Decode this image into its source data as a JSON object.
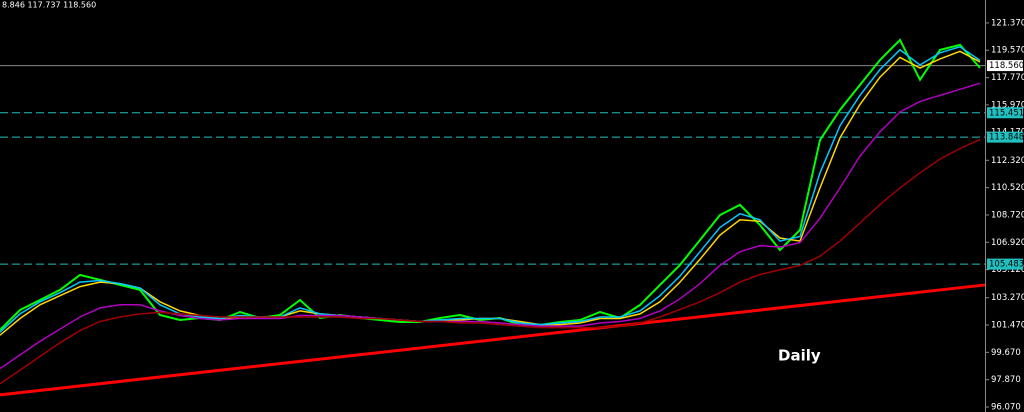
{
  "chart_data": {
    "type": "line",
    "header": "8.846 117.737 118.560",
    "annotation": "Daily",
    "x": [
      0,
      1,
      2,
      3,
      4,
      5,
      6,
      7,
      8,
      9,
      10,
      11,
      12,
      13,
      14,
      15,
      16,
      17,
      18,
      19,
      20,
      21,
      22,
      23,
      24,
      25,
      26,
      27,
      28,
      29,
      30,
      31,
      32,
      33,
      34,
      35,
      36,
      37,
      38,
      39,
      40,
      41,
      42,
      43,
      44,
      45,
      46,
      47,
      48,
      49
    ],
    "xlim": [
      0,
      49.25
    ],
    "ylim": [
      95.74,
      122.88
    ],
    "yticks": [
      {
        "value": 121.37,
        "label": "121.370"
      },
      {
        "value": 119.57,
        "label": "119.570"
      },
      {
        "value": 117.77,
        "label": "117.770"
      },
      {
        "value": 115.97,
        "label": "115.970"
      },
      {
        "value": 114.17,
        "label": "114.170"
      },
      {
        "value": 112.32,
        "label": "112.320"
      },
      {
        "value": 110.52,
        "label": "110.520"
      },
      {
        "value": 108.72,
        "label": "108.720"
      },
      {
        "value": 106.92,
        "label": "106.920"
      },
      {
        "value": 105.12,
        "label": "105.120"
      },
      {
        "value": 103.27,
        "label": "103.270"
      },
      {
        "value": 101.47,
        "label": "101.470"
      },
      {
        "value": 99.67,
        "label": "99.670"
      },
      {
        "value": 97.87,
        "label": "97.870"
      },
      {
        "value": 96.07,
        "label": "96.070"
      }
    ],
    "series": [
      {
        "color": "#00ff00",
        "values": [
          101.15,
          102.46,
          103.12,
          103.78,
          104.77,
          104.44,
          104.11,
          103.78,
          102.13,
          101.8,
          101.93,
          101.8,
          102.33,
          101.93,
          102.13,
          103.12,
          101.93,
          102.13,
          101.93,
          101.8,
          101.67,
          101.67,
          101.93,
          102.13,
          101.8,
          101.93,
          101.47,
          101.47,
          101.67,
          101.8,
          102.33,
          101.93,
          102.79,
          104.11,
          105.43,
          107.07,
          108.72,
          109.38,
          108.06,
          106.41,
          107.73,
          113.66,
          115.64,
          117.29,
          118.93,
          120.25,
          117.62,
          119.59,
          119.92,
          118.41
        ]
      },
      {
        "color": "#ffd700",
        "values": [
          100.8,
          101.9,
          102.8,
          103.4,
          104.0,
          104.3,
          104.2,
          103.9,
          103.0,
          102.4,
          102.1,
          101.9,
          102.0,
          102.0,
          102.0,
          102.4,
          102.2,
          102.1,
          102.0,
          101.9,
          101.8,
          101.7,
          101.8,
          101.8,
          101.9,
          101.9,
          101.7,
          101.5,
          101.5,
          101.6,
          101.9,
          101.9,
          102.2,
          103.0,
          104.3,
          105.8,
          107.4,
          108.4,
          108.3,
          107.2,
          107.0,
          110.5,
          113.8,
          116.0,
          117.8,
          119.1,
          118.4,
          119.0,
          119.5,
          118.8
        ]
      },
      {
        "color": "#00c8ff",
        "values": [
          101.0,
          102.2,
          103.0,
          103.6,
          104.3,
          104.4,
          104.2,
          103.9,
          102.8,
          102.2,
          102.0,
          101.9,
          102.1,
          102.0,
          102.0,
          102.6,
          102.2,
          102.1,
          102.0,
          101.9,
          101.8,
          101.7,
          101.8,
          101.9,
          101.9,
          101.9,
          101.6,
          101.5,
          101.6,
          101.7,
          102.0,
          102.0,
          102.4,
          103.4,
          104.7,
          106.3,
          107.9,
          108.8,
          108.4,
          107.0,
          107.3,
          111.5,
          114.6,
          116.6,
          118.3,
          119.6,
          118.6,
          119.4,
          119.8,
          118.9
        ]
      },
      {
        "color": "#b000c0",
        "values": [
          98.6,
          99.5,
          100.4,
          101.2,
          102.0,
          102.6,
          102.8,
          102.8,
          102.4,
          102.1,
          101.9,
          101.8,
          101.9,
          101.9,
          101.9,
          102.1,
          102.1,
          102.1,
          102.0,
          101.9,
          101.8,
          101.7,
          101.7,
          101.7,
          101.7,
          101.6,
          101.5,
          101.4,
          101.4,
          101.4,
          101.6,
          101.7,
          101.9,
          102.4,
          103.2,
          104.2,
          105.4,
          106.3,
          106.7,
          106.6,
          106.9,
          108.5,
          110.5,
          112.6,
          114.2,
          115.5,
          116.2,
          116.6,
          117.0,
          117.4
        ]
      },
      {
        "color": "#a00000",
        "values": [
          97.6,
          98.5,
          99.4,
          100.3,
          101.1,
          101.7,
          102.0,
          102.2,
          102.3,
          102.2,
          102.1,
          102.0,
          102.0,
          102.0,
          102.0,
          102.0,
          102.0,
          102.0,
          101.9,
          101.9,
          101.8,
          101.7,
          101.7,
          101.6,
          101.6,
          101.5,
          101.4,
          101.3,
          101.3,
          101.3,
          101.3,
          101.4,
          101.6,
          102.0,
          102.5,
          103.0,
          103.6,
          104.3,
          104.8,
          105.1,
          105.4,
          106.0,
          107.0,
          108.2,
          109.4,
          110.5,
          111.5,
          112.4,
          113.1,
          113.7
        ]
      }
    ],
    "trendline": {
      "color": "#ff0000",
      "x": [
        0,
        49.25
      ],
      "values": [
        96.87,
        104.11
      ]
    },
    "levels": [
      {
        "value": 118.56,
        "label": "118.560",
        "color": "#8a8a8a",
        "dashed": false
      },
      {
        "value": 115.451,
        "label": "115.451",
        "color": "#20c0c0",
        "dashed": true
      },
      {
        "value": 113.848,
        "label": "113.848",
        "color": "#20c0c0",
        "dashed": true
      },
      {
        "value": 105.483,
        "label": "105.483",
        "color": "#20c0c0",
        "dashed": true
      }
    ]
  }
}
